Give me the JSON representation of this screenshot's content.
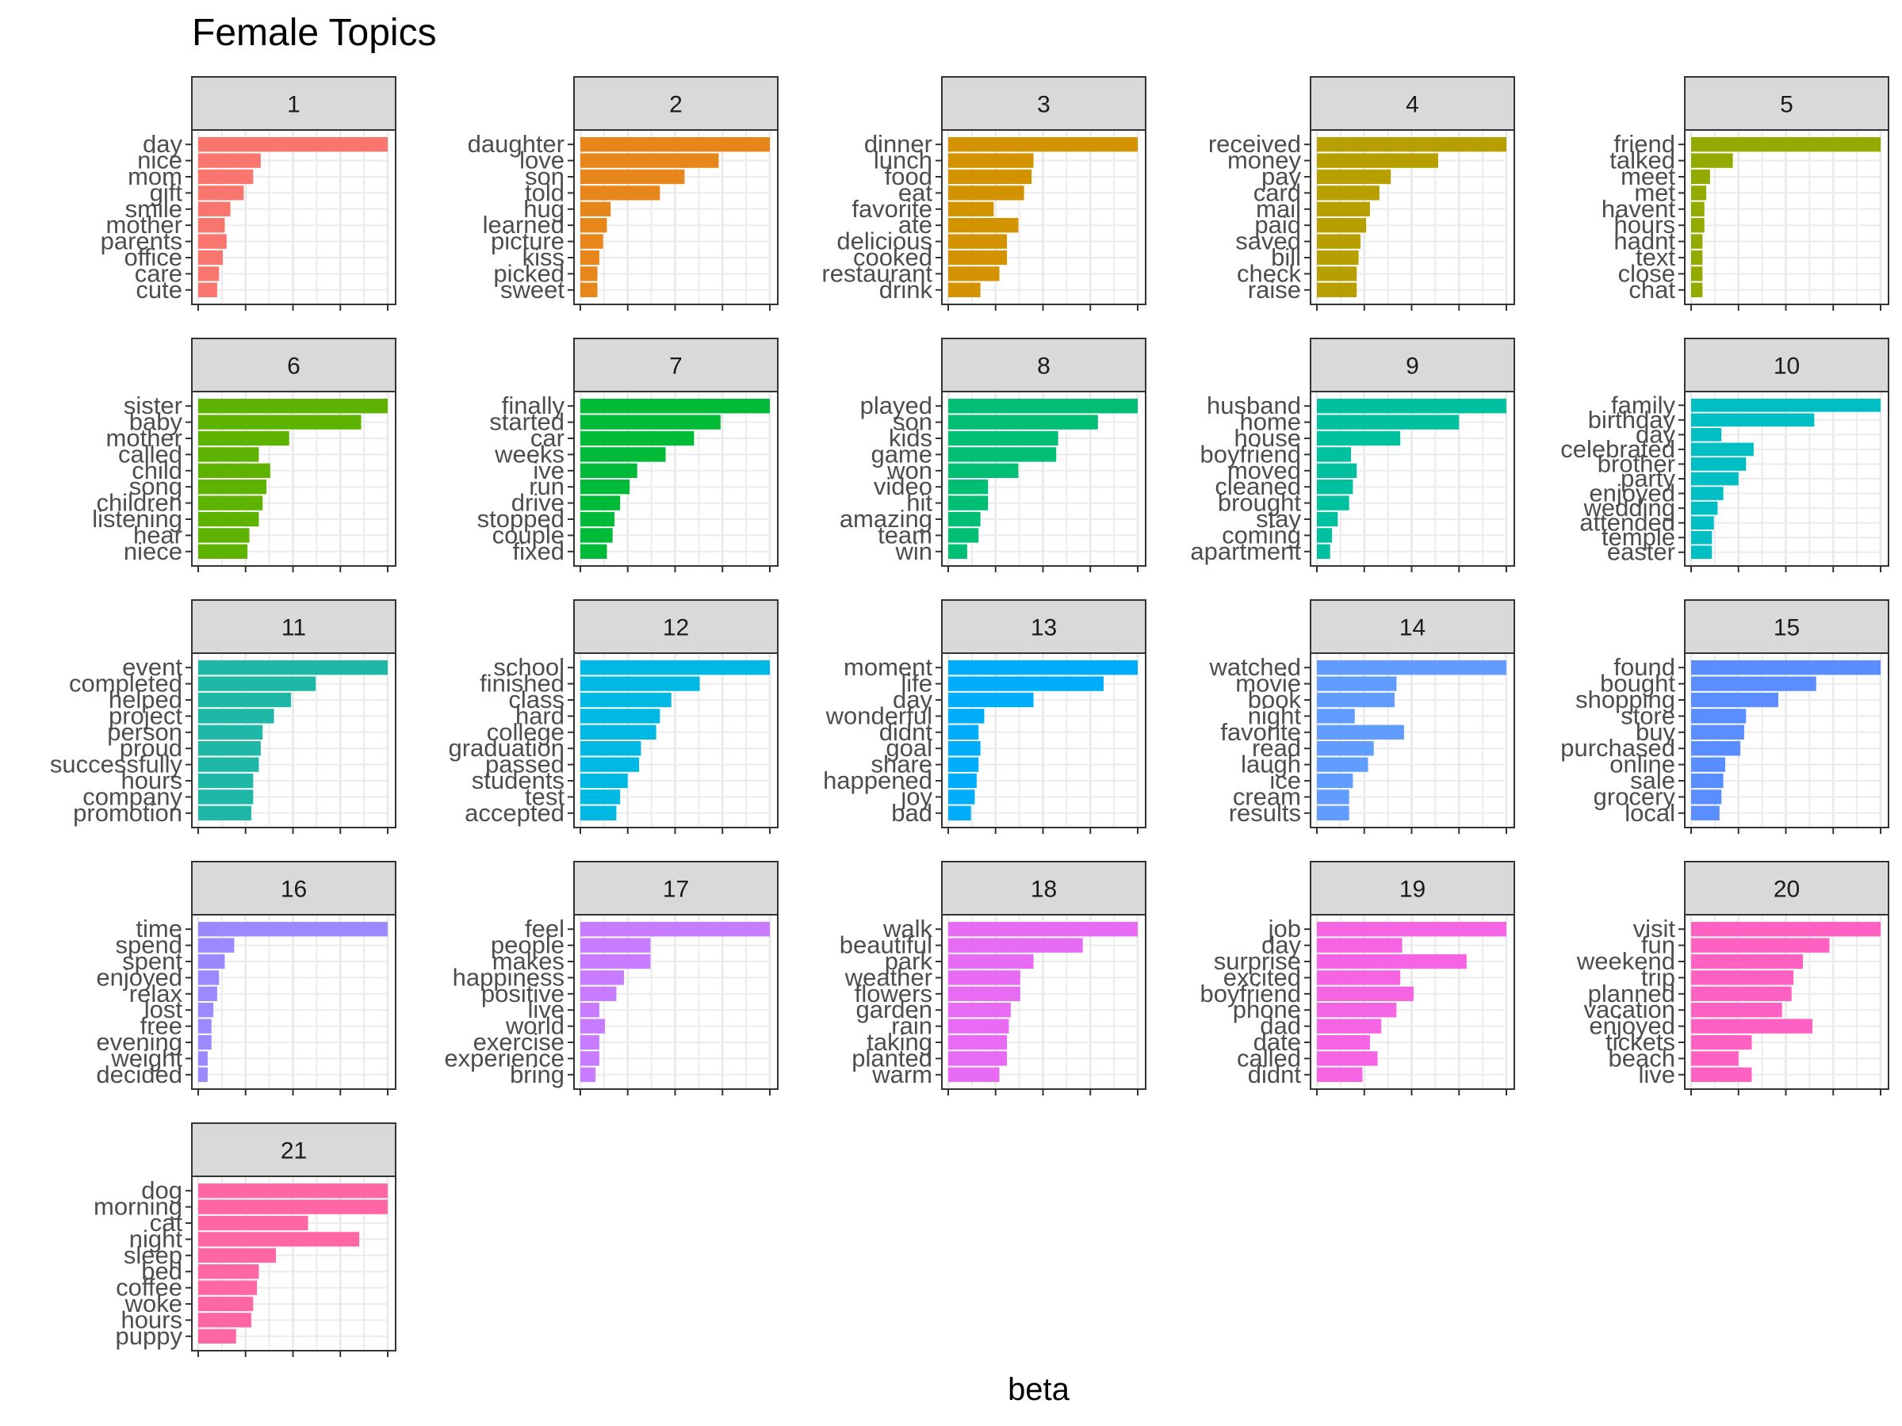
{
  "chart_data": {
    "type": "bar",
    "title": "Female Topics",
    "xlabel": "beta",
    "ylabel": "",
    "orientation": "horizontal",
    "facet_layout": {
      "ncol": 5,
      "nrow": 5
    },
    "xlim": [
      0,
      1
    ],
    "grid": true,
    "legend": "none",
    "panels": [
      {
        "name": "1",
        "color": "#F8766D",
        "terms": [
          "day",
          "nice",
          "mom",
          "gift",
          "smile",
          "mother",
          "parents",
          "office",
          "care",
          "cute"
        ],
        "values": [
          1.0,
          0.33,
          0.29,
          0.24,
          0.17,
          0.14,
          0.15,
          0.13,
          0.11,
          0.1
        ]
      },
      {
        "name": "2",
        "color": "#E7861B",
        "terms": [
          "daughter",
          "love",
          "son",
          "told",
          "hug",
          "learned",
          "picture",
          "kiss",
          "picked",
          "sweet"
        ],
        "values": [
          1.0,
          0.73,
          0.55,
          0.42,
          0.16,
          0.14,
          0.12,
          0.1,
          0.09,
          0.09
        ]
      },
      {
        "name": "3",
        "color": "#D39200",
        "terms": [
          "dinner",
          "lunch",
          "food",
          "eat",
          "favorite",
          "ate",
          "delicious",
          "cooked",
          "restaurant",
          "drink"
        ],
        "values": [
          1.0,
          0.45,
          0.44,
          0.4,
          0.24,
          0.37,
          0.31,
          0.31,
          0.27,
          0.17
        ]
      },
      {
        "name": "4",
        "color": "#B79F00",
        "terms": [
          "received",
          "money",
          "pay",
          "card",
          "mail",
          "paid",
          "saved",
          "bill",
          "check",
          "raise"
        ],
        "values": [
          1.0,
          0.64,
          0.39,
          0.33,
          0.28,
          0.26,
          0.23,
          0.22,
          0.21,
          0.21
        ]
      },
      {
        "name": "5",
        "color": "#93AA00",
        "terms": [
          "friend",
          "talked",
          "meet",
          "met",
          "havent",
          "hours",
          "hadnt",
          "text",
          "close",
          "chat"
        ],
        "values": [
          1.0,
          0.22,
          0.1,
          0.08,
          0.07,
          0.07,
          0.06,
          0.06,
          0.06,
          0.06
        ]
      },
      {
        "name": "6",
        "color": "#5EB300",
        "terms": [
          "sister",
          "baby",
          "mother",
          "called",
          "child",
          "song",
          "children",
          "listening",
          "hear",
          "niece"
        ],
        "values": [
          1.0,
          0.86,
          0.48,
          0.32,
          0.38,
          0.36,
          0.34,
          0.32,
          0.27,
          0.26
        ]
      },
      {
        "name": "7",
        "color": "#00BA38",
        "terms": [
          "finally",
          "started",
          "car",
          "weeks",
          "ive",
          "run",
          "drive",
          "stopped",
          "couple",
          "fixed"
        ],
        "values": [
          1.0,
          0.74,
          0.6,
          0.45,
          0.3,
          0.26,
          0.21,
          0.18,
          0.17,
          0.14
        ]
      },
      {
        "name": "8",
        "color": "#00BF74",
        "terms": [
          "played",
          "son",
          "kids",
          "game",
          "won",
          "video",
          "hit",
          "amazing",
          "team",
          "win"
        ],
        "values": [
          1.0,
          0.79,
          0.58,
          0.57,
          0.37,
          0.21,
          0.21,
          0.17,
          0.16,
          0.1
        ]
      },
      {
        "name": "9",
        "color": "#00C19F",
        "terms": [
          "husband",
          "home",
          "house",
          "boyfriend",
          "moved",
          "cleaned",
          "brought",
          "stay",
          "coming",
          "apartment"
        ],
        "values": [
          1.0,
          0.75,
          0.44,
          0.18,
          0.21,
          0.19,
          0.17,
          0.11,
          0.08,
          0.07
        ]
      },
      {
        "name": "10",
        "color": "#00BFC4",
        "terms": [
          "family",
          "birthday",
          "day",
          "celebrated",
          "brother",
          "party",
          "enjoyed",
          "wedding",
          "attended",
          "temple",
          "easter"
        ],
        "values": [
          1.0,
          0.65,
          0.16,
          0.33,
          0.29,
          0.25,
          0.17,
          0.14,
          0.12,
          0.11,
          0.11
        ]
      },
      {
        "name": "11",
        "color": "#1FB8A6",
        "terms": [
          "event",
          "completed",
          "helped",
          "project",
          "person",
          "proud",
          "successfully",
          "hours",
          "company",
          "promotion"
        ],
        "values": [
          1.0,
          0.62,
          0.49,
          0.4,
          0.34,
          0.33,
          0.32,
          0.29,
          0.29,
          0.28
        ]
      },
      {
        "name": "12",
        "color": "#00B9E3",
        "terms": [
          "school",
          "finished",
          "class",
          "hard",
          "college",
          "graduation",
          "passed",
          "students",
          "test",
          "accepted"
        ],
        "values": [
          1.0,
          0.63,
          0.48,
          0.42,
          0.4,
          0.32,
          0.31,
          0.25,
          0.21,
          0.19
        ]
      },
      {
        "name": "13",
        "color": "#00ADFA",
        "terms": [
          "moment",
          "life",
          "day",
          "wonderful",
          "didnt",
          "goal",
          "share",
          "happened",
          "joy",
          "bad"
        ],
        "values": [
          1.0,
          0.82,
          0.45,
          0.19,
          0.16,
          0.17,
          0.16,
          0.15,
          0.14,
          0.12
        ]
      },
      {
        "name": "14",
        "color": "#619CFF",
        "terms": [
          "watched",
          "movie",
          "book",
          "night",
          "favorite",
          "read",
          "laugh",
          "ice",
          "cream",
          "results"
        ],
        "values": [
          1.0,
          0.42,
          0.41,
          0.2,
          0.46,
          0.3,
          0.27,
          0.19,
          0.17,
          0.17
        ]
      },
      {
        "name": "15",
        "color": "#5A8DFF",
        "terms": [
          "found",
          "bought",
          "shopping",
          "store",
          "buy",
          "purchased",
          "online",
          "sale",
          "grocery",
          "local"
        ],
        "values": [
          1.0,
          0.66,
          0.46,
          0.29,
          0.28,
          0.26,
          0.18,
          0.17,
          0.16,
          0.15
        ]
      },
      {
        "name": "16",
        "color": "#9B8AFF",
        "terms": [
          "time",
          "spend",
          "spent",
          "enjoyed",
          "relax",
          "lost",
          "free",
          "evening",
          "weight",
          "decided"
        ],
        "values": [
          1.0,
          0.19,
          0.14,
          0.11,
          0.1,
          0.08,
          0.07,
          0.07,
          0.05,
          0.05
        ]
      },
      {
        "name": "17",
        "color": "#C77CFF",
        "terms": [
          "feel",
          "people",
          "makes",
          "happiness",
          "positive",
          "live",
          "world",
          "exercise",
          "experience",
          "bring"
        ],
        "values": [
          1.0,
          0.37,
          0.37,
          0.23,
          0.19,
          0.1,
          0.13,
          0.1,
          0.1,
          0.08
        ]
      },
      {
        "name": "18",
        "color": "#E76BF3",
        "terms": [
          "walk",
          "beautiful",
          "park",
          "weather",
          "flowers",
          "garden",
          "rain",
          "taking",
          "planted",
          "warm"
        ],
        "values": [
          1.0,
          0.71,
          0.45,
          0.38,
          0.38,
          0.33,
          0.32,
          0.31,
          0.31,
          0.27
        ]
      },
      {
        "name": "19",
        "color": "#F564E3",
        "terms": [
          "job",
          "day",
          "surprise",
          "excited",
          "boyfriend",
          "phone",
          "dad",
          "date",
          "called",
          "didnt"
        ],
        "values": [
          1.0,
          0.45,
          0.79,
          0.44,
          0.51,
          0.42,
          0.34,
          0.28,
          0.32,
          0.24
        ]
      },
      {
        "name": "20",
        "color": "#FF61C3",
        "terms": [
          "visit",
          "fun",
          "weekend",
          "trip",
          "planned",
          "vacation",
          "enjoyed",
          "tickets",
          "beach",
          "live"
        ],
        "values": [
          1.0,
          0.73,
          0.59,
          0.54,
          0.53,
          0.48,
          0.64,
          0.32,
          0.25,
          0.32
        ]
      },
      {
        "name": "21",
        "color": "#FF67A4",
        "terms": [
          "dog",
          "morning",
          "cat",
          "night",
          "sleep",
          "bed",
          "coffee",
          "woke",
          "hours",
          "puppy"
        ],
        "values": [
          1.0,
          1.0,
          0.58,
          0.85,
          0.41,
          0.32,
          0.31,
          0.29,
          0.28,
          0.2
        ]
      }
    ]
  }
}
